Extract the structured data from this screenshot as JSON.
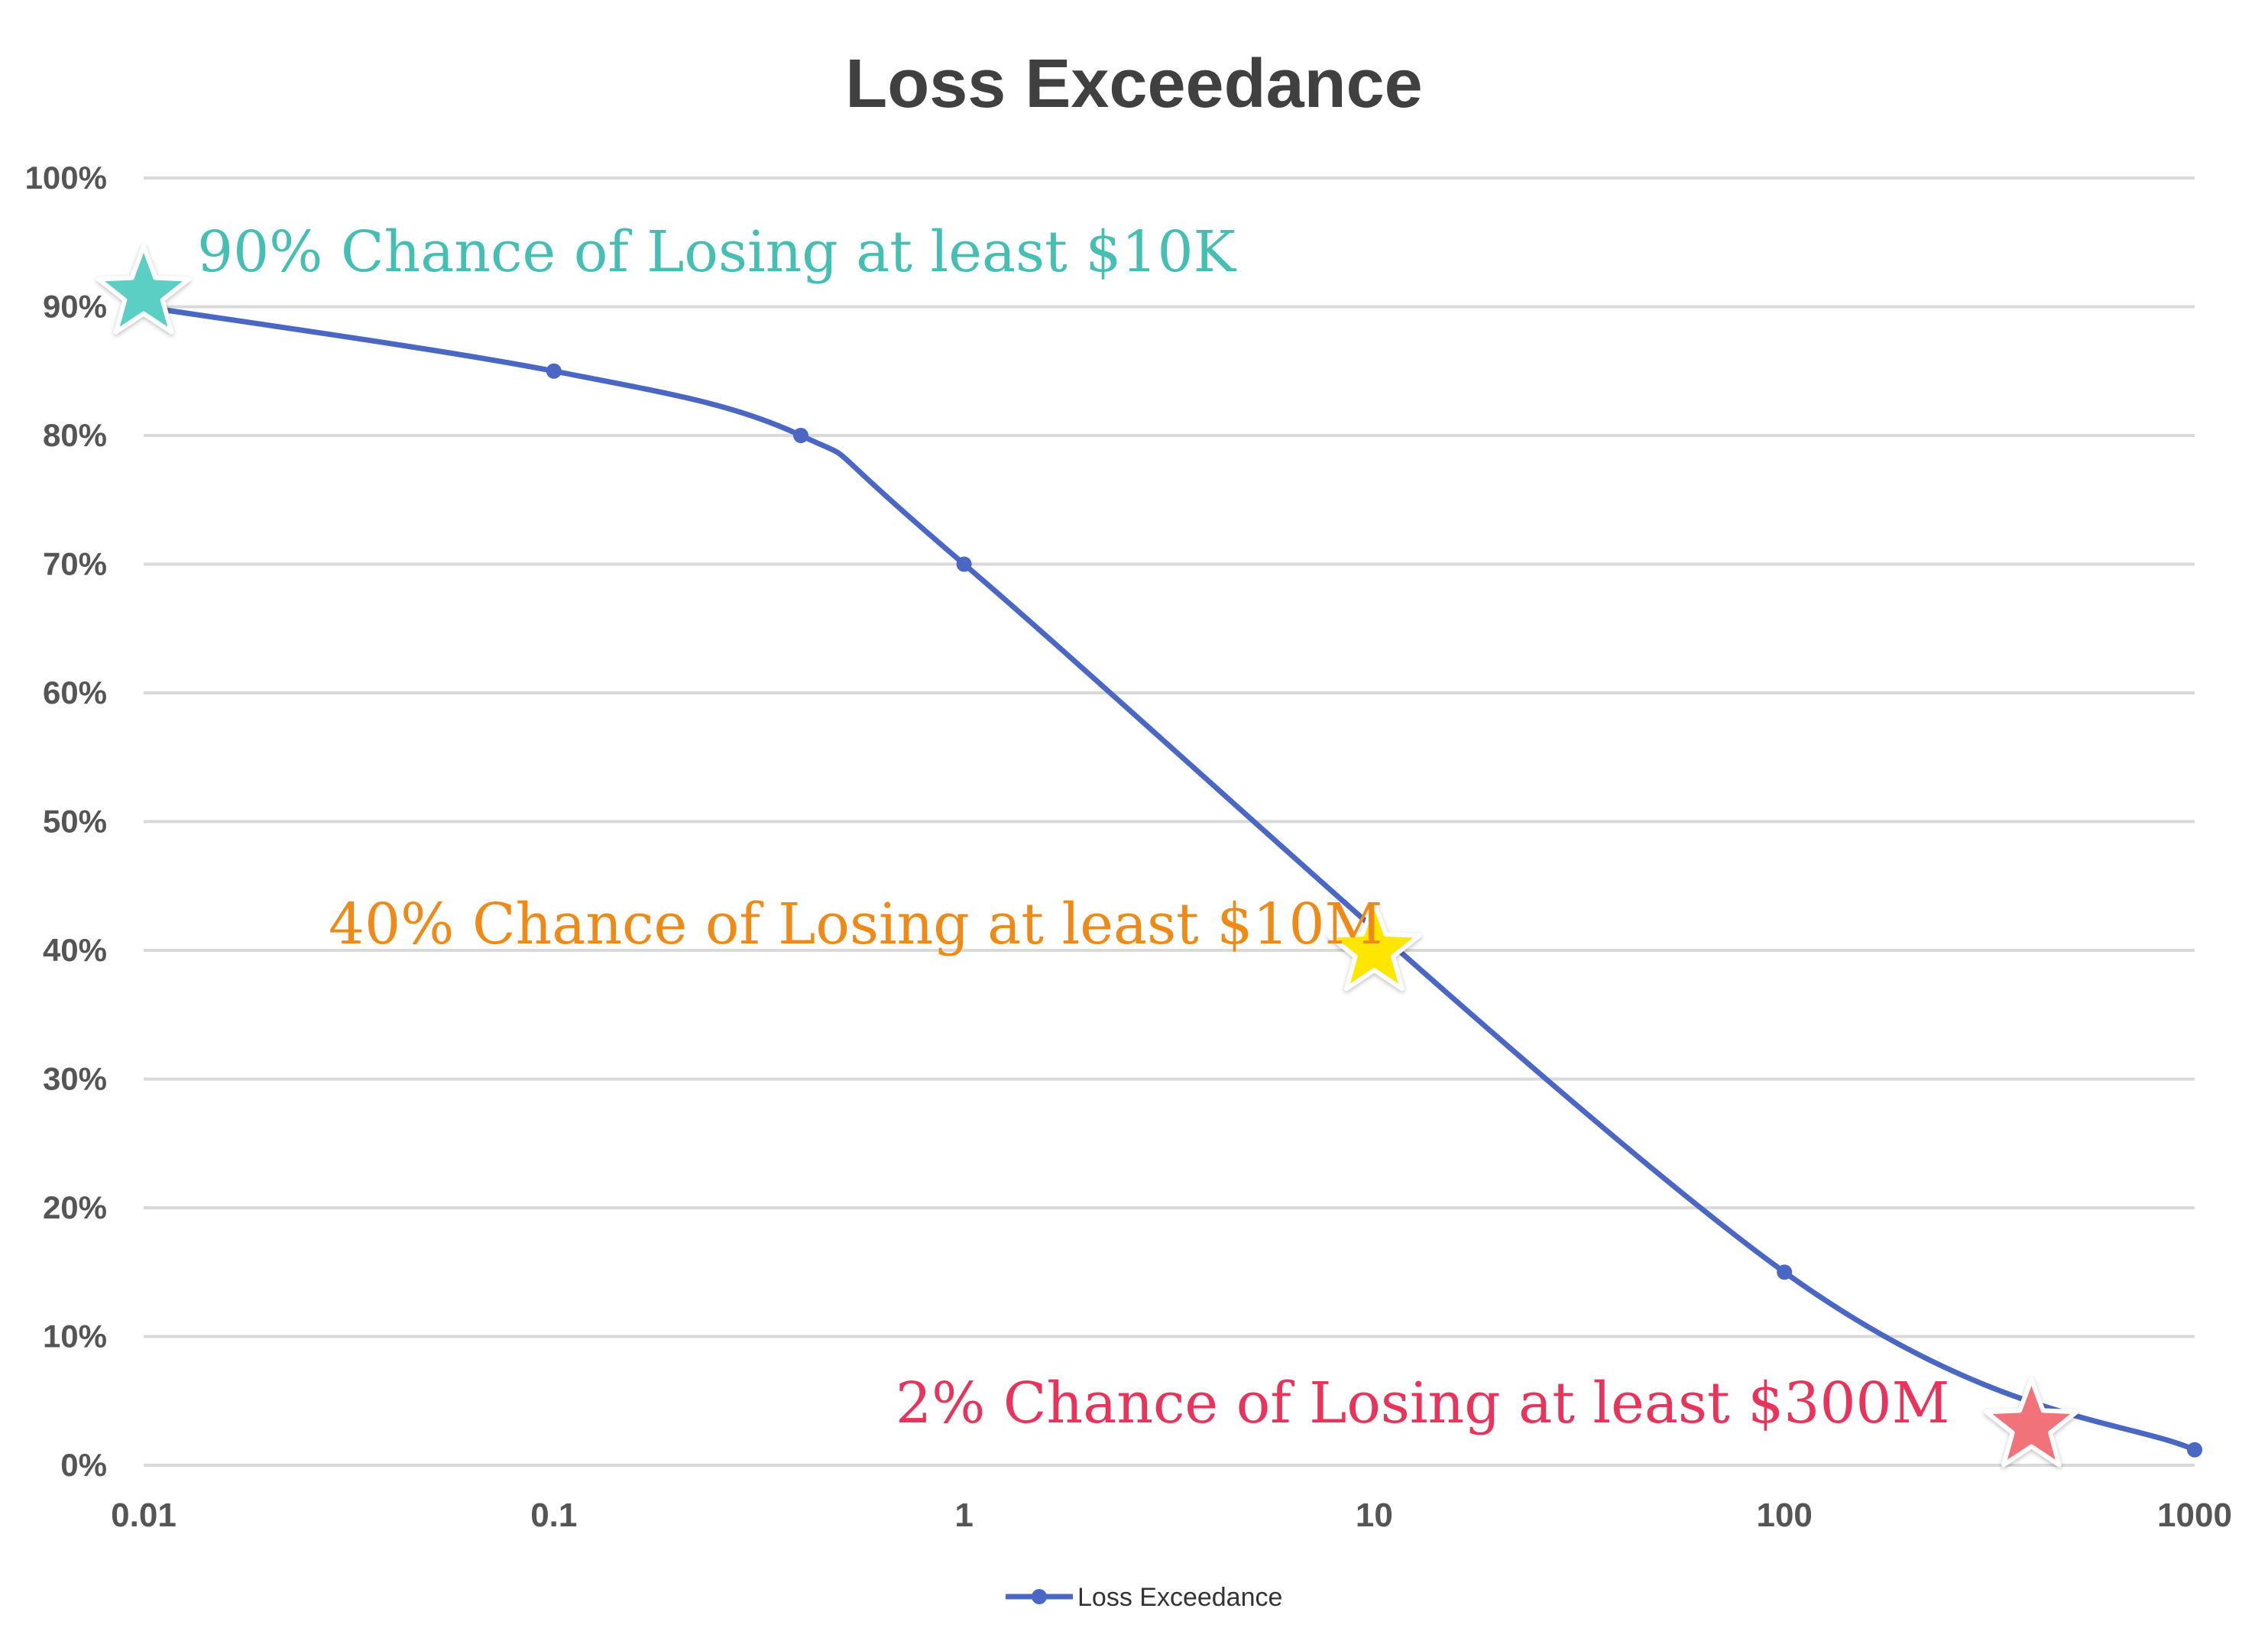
{
  "chart_data": {
    "type": "line",
    "title": "Loss Exceedance",
    "xlabel": "",
    "ylabel": "",
    "x_scale": "log",
    "xlim": [
      0.01,
      1000
    ],
    "ylim": [
      0,
      1
    ],
    "grid": true,
    "x_ticks": [
      {
        "value": 0.01,
        "label": "0.01"
      },
      {
        "value": 0.1,
        "label": "0.1"
      },
      {
        "value": 1,
        "label": "1"
      },
      {
        "value": 10,
        "label": "10"
      },
      {
        "value": 100,
        "label": "100"
      },
      {
        "value": 1000,
        "label": "1000"
      }
    ],
    "y_ticks": [
      {
        "value": 0,
        "label": "0%"
      },
      {
        "value": 0.1,
        "label": "10%"
      },
      {
        "value": 0.2,
        "label": "20%"
      },
      {
        "value": 0.3,
        "label": "30%"
      },
      {
        "value": 0.4,
        "label": "40%"
      },
      {
        "value": 0.5,
        "label": "50%"
      },
      {
        "value": 0.6,
        "label": "60%"
      },
      {
        "value": 0.7,
        "label": "70%"
      },
      {
        "value": 0.8,
        "label": "80%"
      },
      {
        "value": 0.9,
        "label": "90%"
      },
      {
        "value": 1,
        "label": "100%"
      }
    ],
    "series": [
      {
        "name": "Loss Exceedance",
        "color": "#4a67c4",
        "points": [
          {
            "x": 0.01,
            "y": 0.9
          },
          {
            "x": 0.1,
            "y": 0.85
          },
          {
            "x": 0.4,
            "y": 0.8
          },
          {
            "x": 1,
            "y": 0.7
          },
          {
            "x": 100,
            "y": 0.15
          },
          {
            "x": 1000,
            "y": 0.012
          }
        ]
      }
    ],
    "legend": {
      "position": "bottom"
    },
    "annotations": [
      {
        "text": "90% Chance of Losing at least $10K",
        "x": 0.01,
        "y": 0.91,
        "color": "#45bfb3",
        "marker_color": "#5ccfc5"
      },
      {
        "text": "40% Chance of Losing at least $10M",
        "x": 10,
        "y": 0.4,
        "color": "#ef8a17",
        "marker_color": "#ffe600"
      },
      {
        "text": "2% Chance of Losing at least $300M",
        "x": 400,
        "y": 0.03,
        "color": "#e8335a",
        "marker_color": "#f2727a"
      }
    ]
  }
}
